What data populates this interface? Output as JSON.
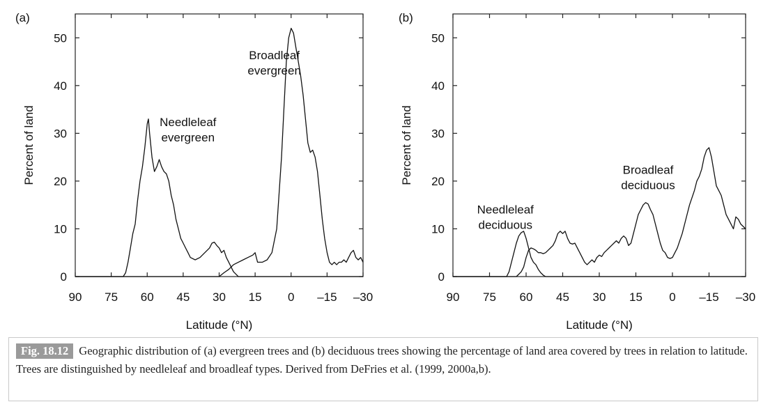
{
  "figure": {
    "caption_label": "Fig. 18.12",
    "caption_text": "Geographic distribution of (a) evergreen trees and (b) deciduous trees showing the percentage of land area covered by trees in relation to latitude. Trees are distinguished by needleleaf and broadleaf types. Derived from DeFries et al. (1999, 2000a,b)."
  },
  "chart_data": [
    {
      "type": "line",
      "panel_label": "(a)",
      "xlabel": "Latitude (°N)",
      "ylabel": "Percent of land",
      "xlim": [
        90,
        -30
      ],
      "ylim": [
        0,
        55
      ],
      "xticks": [
        90,
        75,
        60,
        45,
        30,
        15,
        0,
        -15,
        -30
      ],
      "xtick_labels": [
        "90",
        "75",
        "60",
        "45",
        "30",
        "15",
        "0",
        "–15",
        "–30"
      ],
      "yticks": [
        0,
        10,
        20,
        30,
        40,
        50
      ],
      "grid": false,
      "series": [
        {
          "label": "Needleleaf evergreen",
          "points": [
            [
              90,
              0
            ],
            [
              75,
              0
            ],
            [
              70,
              0
            ],
            [
              69,
              0.8
            ],
            [
              68,
              3
            ],
            [
              67,
              6
            ],
            [
              66,
              9
            ],
            [
              65,
              11
            ],
            [
              64,
              16
            ],
            [
              63,
              20
            ],
            [
              62,
              23
            ],
            [
              61,
              27
            ],
            [
              60,
              32
            ],
            [
              59.5,
              33
            ],
            [
              59,
              30
            ],
            [
              58,
              25
            ],
            [
              57,
              22
            ],
            [
              56,
              23
            ],
            [
              55,
              24.5
            ],
            [
              54,
              23
            ],
            [
              53,
              22
            ],
            [
              52,
              21.5
            ],
            [
              51,
              20
            ],
            [
              50,
              17
            ],
            [
              49,
              15
            ],
            [
              48,
              12
            ],
            [
              47,
              10
            ],
            [
              46,
              8
            ],
            [
              45,
              7
            ],
            [
              44,
              6
            ],
            [
              43,
              5
            ],
            [
              42,
              4
            ],
            [
              40,
              3.5
            ],
            [
              38,
              4
            ],
            [
              36,
              5
            ],
            [
              34,
              6
            ],
            [
              33,
              7
            ],
            [
              32,
              7.2
            ],
            [
              31,
              6.5
            ],
            [
              30,
              6
            ],
            [
              29,
              5
            ],
            [
              28,
              5.5
            ],
            [
              27,
              4
            ],
            [
              26,
              3
            ],
            [
              25,
              2
            ],
            [
              24,
              1
            ],
            [
              23,
              0.5
            ],
            [
              22,
              0
            ],
            [
              -30,
              0
            ]
          ]
        },
        {
          "label": "Broadleaf evergreen",
          "points": [
            [
              90,
              0
            ],
            [
              30,
              0
            ],
            [
              28,
              0.8
            ],
            [
              26,
              1.5
            ],
            [
              24,
              2.5
            ],
            [
              22,
              3
            ],
            [
              20,
              3.5
            ],
            [
              18,
              4
            ],
            [
              16,
              4.5
            ],
            [
              15,
              5
            ],
            [
              14,
              3
            ],
            [
              12,
              3
            ],
            [
              10,
              3.5
            ],
            [
              8,
              5
            ],
            [
              6,
              10
            ],
            [
              4,
              25
            ],
            [
              3,
              35
            ],
            [
              2,
              45
            ],
            [
              1,
              50
            ],
            [
              0,
              52
            ],
            [
              -1,
              51
            ],
            [
              -2,
              48
            ],
            [
              -3,
              45
            ],
            [
              -4,
              42
            ],
            [
              -5,
              38
            ],
            [
              -6,
              33
            ],
            [
              -7,
              28
            ],
            [
              -8,
              26
            ],
            [
              -9,
              26.5
            ],
            [
              -10,
              25
            ],
            [
              -11,
              22
            ],
            [
              -12,
              17
            ],
            [
              -13,
              12
            ],
            [
              -14,
              8
            ],
            [
              -15,
              5
            ],
            [
              -16,
              3
            ],
            [
              -17,
              2.5
            ],
            [
              -18,
              3
            ],
            [
              -19,
              2.5
            ],
            [
              -20,
              3
            ],
            [
              -21,
              3
            ],
            [
              -22,
              3.5
            ],
            [
              -23,
              3
            ],
            [
              -24,
              4
            ],
            [
              -25,
              5
            ],
            [
              -26,
              5.5
            ],
            [
              -27,
              4
            ],
            [
              -28,
              3.5
            ],
            [
              -29,
              4
            ],
            [
              -30,
              3
            ]
          ]
        }
      ],
      "annotations": [
        {
          "lines": [
            "Needleleaf",
            "evergreen"
          ],
          "x": 43,
          "y": 31.5
        },
        {
          "lines": [
            "Broadleaf",
            "evergreen"
          ],
          "x": 7,
          "y": 45.5
        }
      ]
    },
    {
      "type": "line",
      "panel_label": "(b)",
      "xlabel": "Latitude (°N)",
      "ylabel": "Percent of land",
      "xlim": [
        90,
        -30
      ],
      "ylim": [
        0,
        55
      ],
      "xticks": [
        90,
        75,
        60,
        45,
        30,
        15,
        0,
        -15,
        -30
      ],
      "xtick_labels": [
        "90",
        "75",
        "60",
        "45",
        "30",
        "15",
        "0",
        "–15",
        "–30"
      ],
      "yticks": [
        0,
        10,
        20,
        30,
        40,
        50
      ],
      "grid": false,
      "series": [
        {
          "label": "Needleleaf deciduous",
          "points": [
            [
              90,
              0
            ],
            [
              68,
              0
            ],
            [
              67,
              1
            ],
            [
              66,
              3
            ],
            [
              65,
              5
            ],
            [
              64,
              7
            ],
            [
              63,
              8.5
            ],
            [
              62,
              9.2
            ],
            [
              61,
              9.5
            ],
            [
              60,
              8
            ],
            [
              59,
              6
            ],
            [
              58,
              4
            ],
            [
              57,
              3
            ],
            [
              56,
              2.5
            ],
            [
              55,
              1.5
            ],
            [
              54,
              0.8
            ],
            [
              53,
              0.3
            ],
            [
              52,
              0
            ],
            [
              -30,
              0
            ]
          ]
        },
        {
          "label": "Broadleaf deciduous",
          "points": [
            [
              90,
              0
            ],
            [
              64,
              0
            ],
            [
              63,
              0.5
            ],
            [
              62,
              1
            ],
            [
              61,
              2
            ],
            [
              60,
              4
            ],
            [
              59,
              5.5
            ],
            [
              58,
              6
            ],
            [
              57,
              5.8
            ],
            [
              56,
              5.5
            ],
            [
              55,
              5
            ],
            [
              54,
              5
            ],
            [
              53,
              4.8
            ],
            [
              52,
              5
            ],
            [
              51,
              5.5
            ],
            [
              50,
              6
            ],
            [
              49,
              6.5
            ],
            [
              48,
              7.5
            ],
            [
              47,
              9
            ],
            [
              46,
              9.5
            ],
            [
              45,
              9
            ],
            [
              44,
              9.5
            ],
            [
              43,
              8
            ],
            [
              42,
              7
            ],
            [
              41,
              6.8
            ],
            [
              40,
              7
            ],
            [
              39,
              6
            ],
            [
              38,
              5
            ],
            [
              37,
              4
            ],
            [
              36,
              3
            ],
            [
              35,
              2.5
            ],
            [
              34,
              3
            ],
            [
              33,
              3.5
            ],
            [
              32,
              3
            ],
            [
              31,
              4
            ],
            [
              30,
              4.5
            ],
            [
              29,
              4.2
            ],
            [
              28,
              5
            ],
            [
              27,
              5.5
            ],
            [
              26,
              6
            ],
            [
              25,
              6.5
            ],
            [
              24,
              7
            ],
            [
              23,
              7.5
            ],
            [
              22,
              7
            ],
            [
              21,
              8
            ],
            [
              20,
              8.5
            ],
            [
              19,
              8
            ],
            [
              18,
              6.5
            ],
            [
              17,
              7
            ],
            [
              16,
              9
            ],
            [
              15,
              11
            ],
            [
              14,
              13
            ],
            [
              13,
              14
            ],
            [
              12,
              15
            ],
            [
              11,
              15.5
            ],
            [
              10,
              15.2
            ],
            [
              9,
              14
            ],
            [
              8,
              13
            ],
            [
              7,
              11
            ],
            [
              6,
              9
            ],
            [
              5,
              7
            ],
            [
              4,
              5.5
            ],
            [
              3,
              5
            ],
            [
              2,
              4
            ],
            [
              1,
              3.8
            ],
            [
              0,
              4
            ],
            [
              -1,
              5
            ],
            [
              -2,
              6
            ],
            [
              -3,
              7.5
            ],
            [
              -4,
              9
            ],
            [
              -5,
              11
            ],
            [
              -6,
              13
            ],
            [
              -7,
              15
            ],
            [
              -8,
              16.5
            ],
            [
              -9,
              18
            ],
            [
              -10,
              20
            ],
            [
              -11,
              21
            ],
            [
              -12,
              22.5
            ],
            [
              -13,
              25
            ],
            [
              -14,
              26.5
            ],
            [
              -15,
              27
            ],
            [
              -16,
              25
            ],
            [
              -17,
              22
            ],
            [
              -18,
              19
            ],
            [
              -19,
              18
            ],
            [
              -20,
              17
            ],
            [
              -21,
              15
            ],
            [
              -22,
              13
            ],
            [
              -23,
              12
            ],
            [
              -24,
              11
            ],
            [
              -25,
              10
            ],
            [
              -26,
              12.5
            ],
            [
              -27,
              12
            ],
            [
              -28,
              11
            ],
            [
              -29,
              10.5
            ],
            [
              -30,
              10
            ]
          ]
        }
      ],
      "annotations": [
        {
          "lines": [
            "Needleleaf",
            "deciduous"
          ],
          "x": 68.5,
          "y": 13.2
        },
        {
          "lines": [
            "Broadleaf",
            "deciduous"
          ],
          "x": 10,
          "y": 21.5
        }
      ]
    }
  ]
}
